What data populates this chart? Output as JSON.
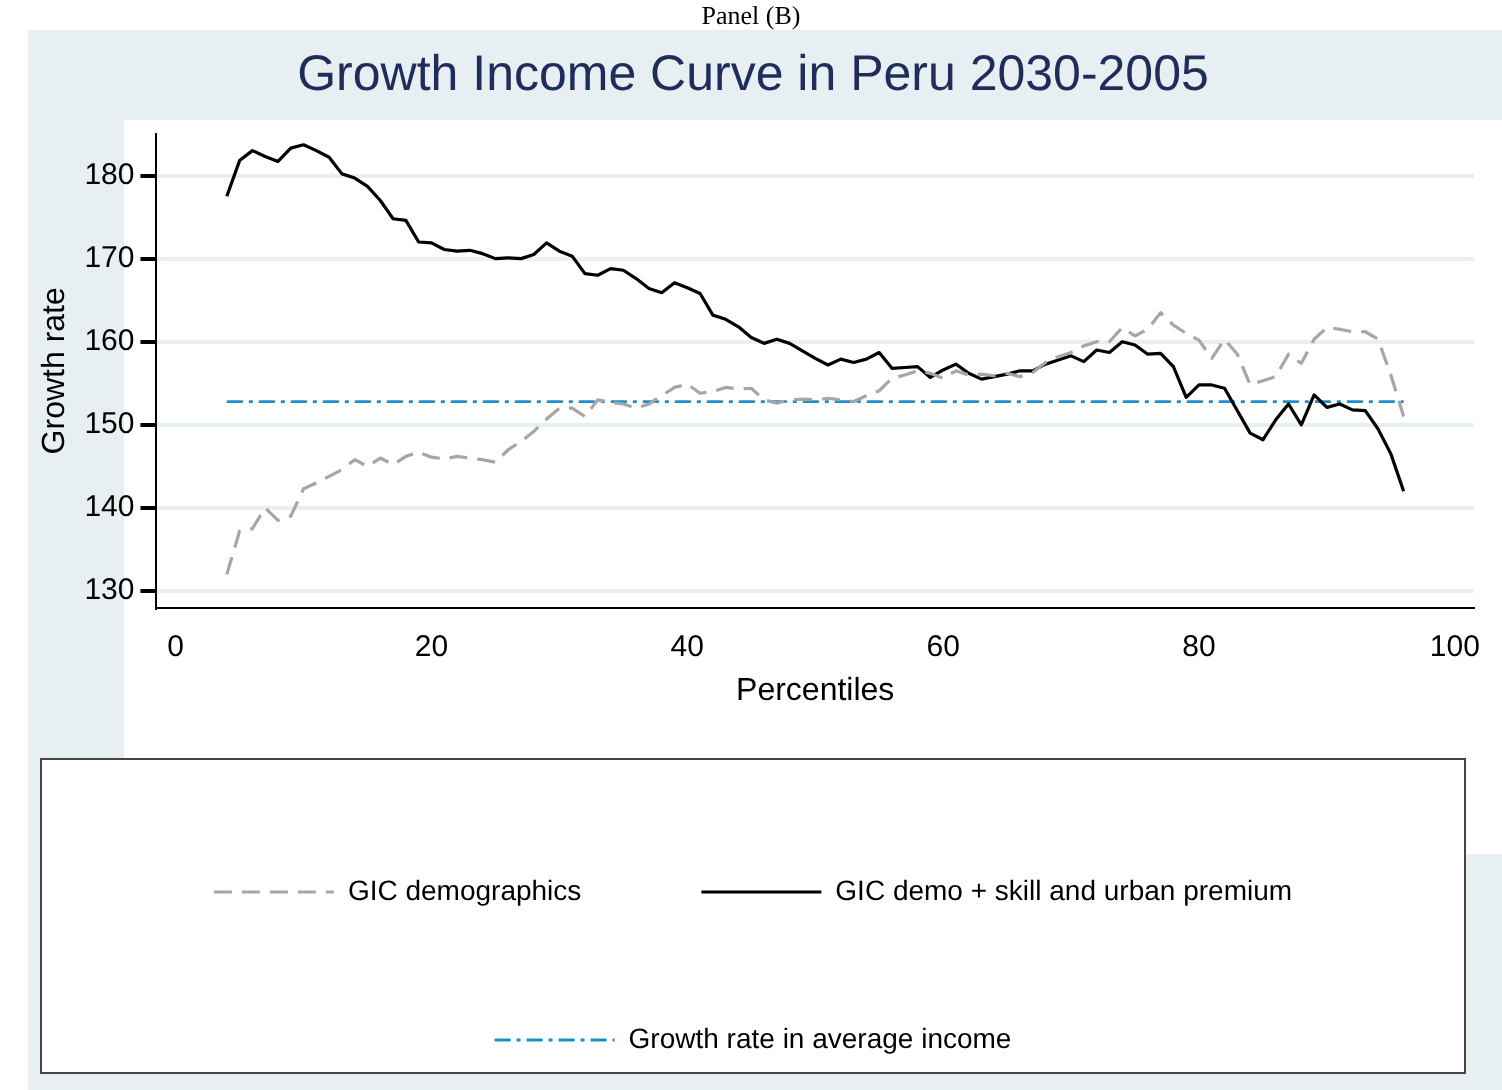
{
  "chart_data": {
    "type": "line",
    "title": "Growth Income Curve in Peru 2030-2005",
    "xlabel": "Percentiles",
    "ylabel": "Growth rate",
    "annotations": [
      "Panel (B)"
    ],
    "x": [
      4,
      5,
      6,
      7,
      8,
      9,
      10,
      11,
      12,
      13,
      14,
      15,
      16,
      17,
      18,
      19,
      20,
      21,
      22,
      23,
      24,
      25,
      26,
      27,
      28,
      29,
      30,
      31,
      32,
      33,
      34,
      35,
      36,
      37,
      38,
      39,
      40,
      41,
      42,
      43,
      44,
      45,
      46,
      47,
      48,
      49,
      50,
      51,
      52,
      53,
      54,
      55,
      56,
      57,
      58,
      59,
      60,
      61,
      62,
      63,
      64,
      65,
      66,
      67,
      68,
      69,
      70,
      71,
      72,
      73,
      74,
      75,
      76,
      77,
      78,
      79,
      80,
      81,
      82,
      83,
      84,
      85,
      86,
      87,
      88,
      89,
      90,
      91,
      92,
      93,
      94,
      95,
      96
    ],
    "series": [
      {
        "name": "GIC demographics",
        "color": "#a6a6a6",
        "line_style": "dashed",
        "values": [
          132,
          137.2,
          137.5,
          140,
          138.5,
          139,
          142.3,
          143,
          143.8,
          144.6,
          145.8,
          145,
          146,
          145.2,
          146.2,
          146.7,
          146.1,
          145.9,
          146.2,
          146,
          145.8,
          145.5,
          147,
          148,
          149.2,
          150.7,
          152,
          152,
          151,
          153,
          152.7,
          152.5,
          152,
          152.5,
          153.5,
          154.5,
          154.9,
          153.8,
          154,
          154.5,
          154.3,
          154.4,
          153,
          152.6,
          153,
          153.1,
          153,
          153.2,
          153,
          152.8,
          153.5,
          154.1,
          155.6,
          156,
          156.5,
          156.2,
          155.6,
          156.5,
          156,
          156.1,
          155.9,
          156.2,
          155.8,
          156.3,
          157.5,
          158.2,
          158.7,
          159.5,
          160,
          160,
          161.7,
          160.7,
          161.5,
          163.5,
          162,
          161,
          160.2,
          158,
          160.3,
          158.5,
          154.8,
          155.3,
          155.8,
          158.5,
          157.4,
          160.3,
          161.7,
          161.5,
          161.2,
          161.2,
          160.3,
          156,
          151
        ]
      },
      {
        "name": "GIC demo + skill and urban premium",
        "color": "#000000",
        "line_style": "solid",
        "values": [
          177.5,
          181.8,
          183,
          182.3,
          181.7,
          183.3,
          183.7,
          183,
          182.2,
          180.2,
          179.7,
          178.7,
          177,
          174.8,
          174.6,
          172,
          171.9,
          171.1,
          170.9,
          171,
          170.6,
          170,
          170.1,
          170,
          170.5,
          171.9,
          170.9,
          170.3,
          168.2,
          168,
          168.8,
          168.6,
          167.6,
          166.4,
          165.9,
          167.1,
          166.5,
          165.8,
          163.2,
          162.7,
          161.8,
          160.5,
          159.8,
          160.3,
          159.8,
          158.9,
          158,
          157.2,
          157.9,
          157.5,
          157.9,
          158.7,
          156.8,
          156.9,
          157,
          155.7,
          156.6,
          157.3,
          156.2,
          155.5,
          155.8,
          156.1,
          156.5,
          156.5,
          157.3,
          157.8,
          158.3,
          157.6,
          159,
          158.7,
          160,
          159.6,
          158.5,
          158.6,
          157,
          153.3,
          154.8,
          154.8,
          154.4,
          151.7,
          149,
          148.2,
          150.6,
          152.5,
          150,
          153.6,
          152.1,
          152.5,
          151.8,
          151.7,
          149.5,
          146.5,
          142
        ]
      }
    ],
    "ref_lines": [
      {
        "axis": "y",
        "value": 152.8,
        "label": "Growth rate in average income",
        "color": "#1a8fc9",
        "line_style": "dashdot"
      }
    ],
    "xlim": [
      -1.5,
      101.5
    ],
    "ylim": [
      128,
      185
    ],
    "xticks": [
      0,
      20,
      40,
      60,
      80,
      100
    ],
    "yticks": [
      130,
      140,
      150,
      160,
      170,
      180
    ],
    "grid": "y",
    "legend": "bottom",
    "marker": "none"
  }
}
